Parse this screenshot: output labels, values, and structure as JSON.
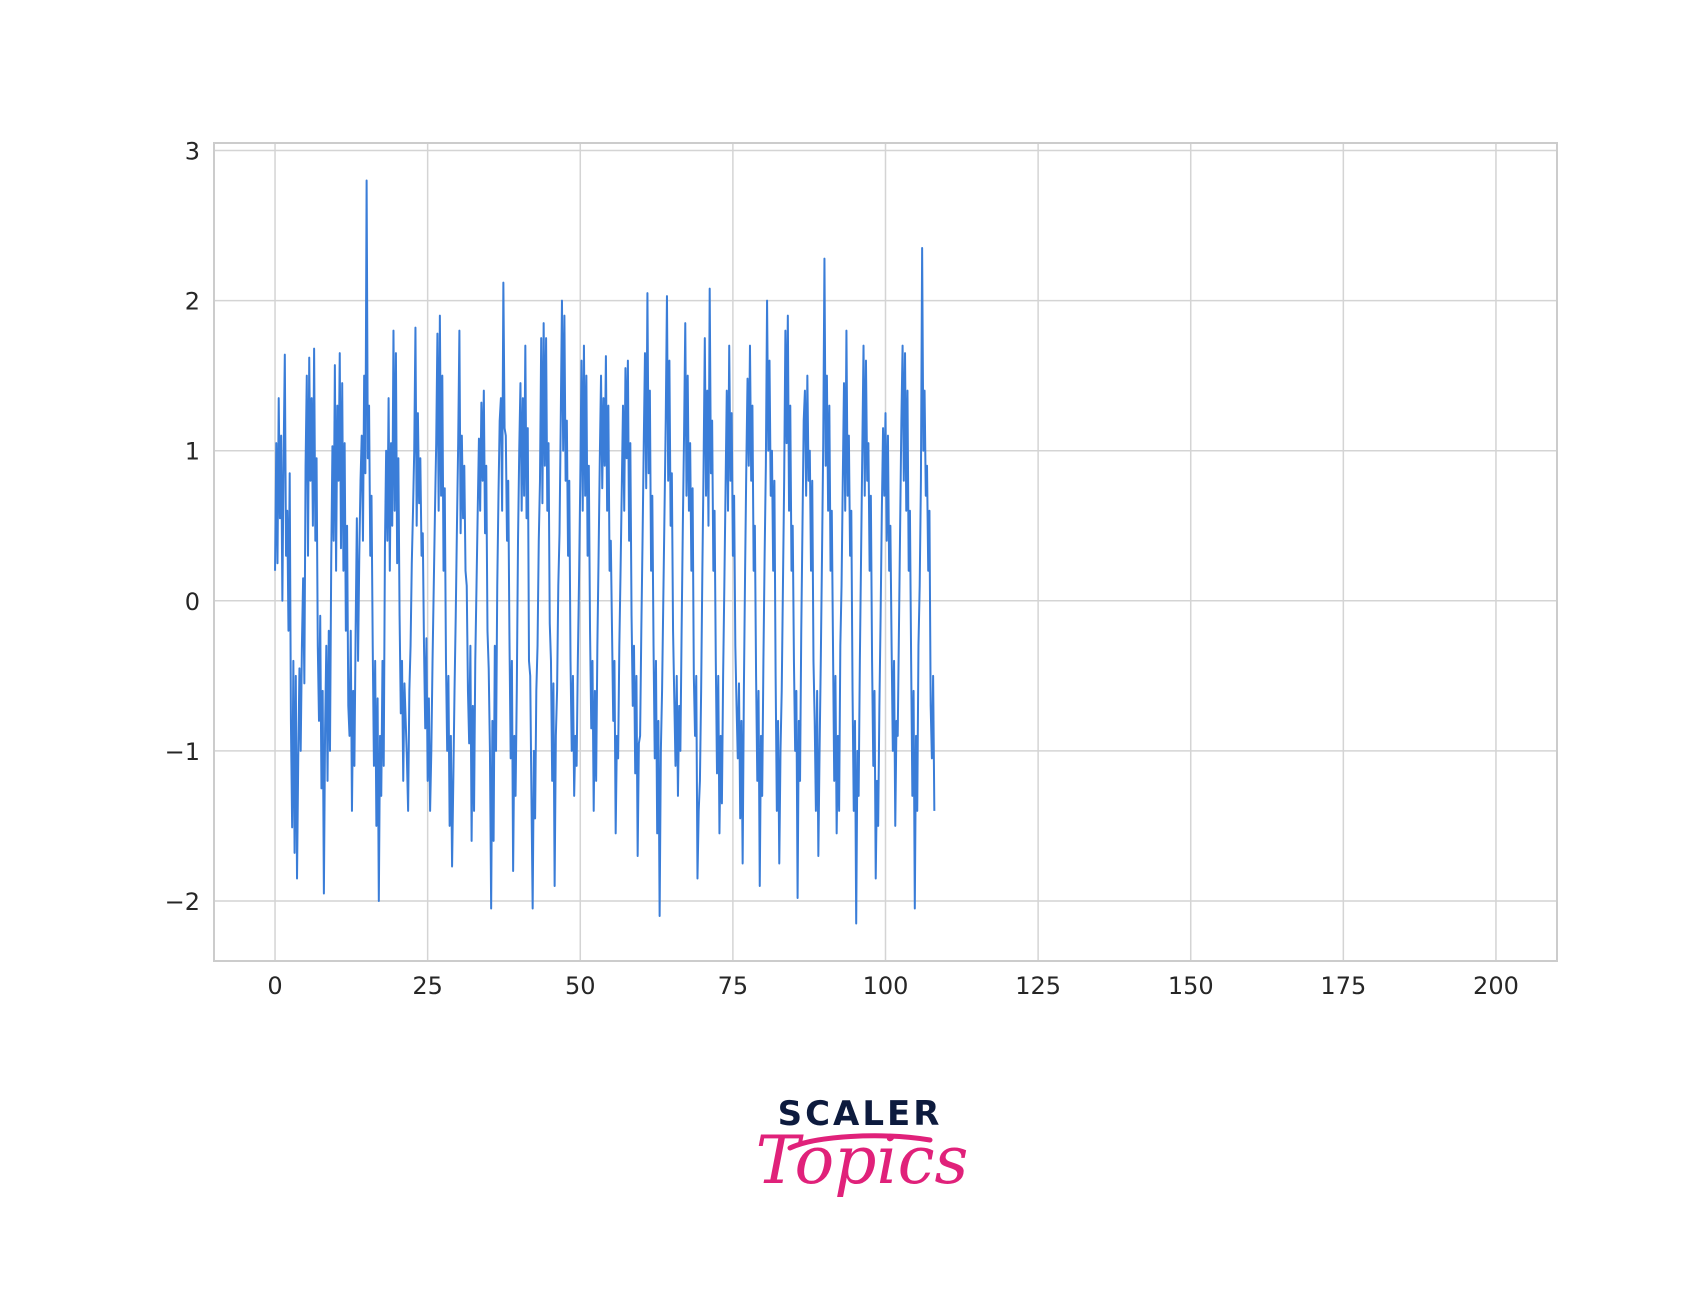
{
  "chart_data": {
    "type": "line",
    "title": "",
    "xlabel": "",
    "ylabel": "",
    "xlim": [
      -10,
      210
    ],
    "ylim": [
      -2.4,
      3.05
    ],
    "grid": true,
    "legend": false,
    "series": [
      {
        "color": "#3a7dd8",
        "x_start": 0,
        "x_step": 0.2,
        "y": [
          0.2,
          1.05,
          0.25,
          1.35,
          0.55,
          1.1,
          0.0,
          0.95,
          1.64,
          0.3,
          0.6,
          -0.2,
          0.85,
          -0.8,
          -1.51,
          -0.4,
          -1.68,
          -0.5,
          -1.85,
          -1.05,
          -0.45,
          -1.0,
          -0.3,
          0.15,
          -0.55,
          0.9,
          1.5,
          0.3,
          1.62,
          0.8,
          1.35,
          0.5,
          1.68,
          0.4,
          0.95,
          -0.3,
          -0.8,
          -0.1,
          -1.25,
          -0.6,
          -1.95,
          -0.85,
          -0.3,
          -1.2,
          -0.2,
          -1.0,
          0.25,
          1.03,
          0.4,
          1.57,
          0.2,
          1.3,
          0.8,
          1.65,
          0.35,
          1.45,
          0.2,
          1.05,
          -0.2,
          0.5,
          -0.7,
          -0.9,
          -0.2,
          -1.4,
          -0.6,
          -1.1,
          -0.2,
          0.55,
          -0.4,
          0.3,
          0.8,
          1.1,
          0.4,
          1.5,
          0.85,
          2.8,
          0.95,
          1.3,
          0.3,
          0.7,
          -0.3,
          -1.1,
          -0.4,
          -1.5,
          -0.65,
          -2.0,
          -0.9,
          -1.3,
          -0.4,
          -1.1,
          0.35,
          1.0,
          0.4,
          1.35,
          0.2,
          1.05,
          0.5,
          1.8,
          0.6,
          1.65,
          0.25,
          0.95,
          -0.1,
          -0.75,
          -0.4,
          -1.2,
          -0.55,
          -0.8,
          -1.05,
          -1.4,
          -0.6,
          -0.3,
          0.25,
          0.6,
          1.0,
          1.82,
          0.5,
          1.25,
          0.65,
          0.95,
          0.3,
          0.45,
          -0.3,
          -0.85,
          -0.25,
          -1.2,
          -0.65,
          -1.4,
          -1.0,
          -0.4,
          0.1,
          0.6,
          1.05,
          1.78,
          0.6,
          1.9,
          0.7,
          1.5,
          0.2,
          0.75,
          -0.4,
          -1.0,
          -0.5,
          -1.5,
          -0.9,
          -1.77,
          -1.2,
          -0.6,
          -0.1,
          0.5,
          1.05,
          1.8,
          0.45,
          1.1,
          0.55,
          0.9,
          0.2,
          0.1,
          -0.6,
          -0.95,
          -0.3,
          -1.6,
          -0.7,
          -1.4,
          -0.4,
          0.1,
          0.6,
          1.08,
          0.6,
          1.32,
          0.8,
          1.4,
          0.45,
          0.9,
          -0.2,
          -0.45,
          -1.0,
          -2.05,
          -0.8,
          -1.6,
          -0.3,
          -1.0,
          0.1,
          0.7,
          1.2,
          1.35,
          0.6,
          2.12,
          1.15,
          1.1,
          0.4,
          0.8,
          -0.25,
          -1.05,
          -0.4,
          -1.8,
          -0.9,
          -1.3,
          -0.6,
          0.4,
          1.0,
          1.45,
          0.6,
          1.35,
          0.7,
          1.7,
          0.55,
          1.15,
          -0.4,
          -0.5,
          -1.3,
          -2.05,
          -1.0,
          -1.45,
          -0.6,
          -0.3,
          0.4,
          0.8,
          1.75,
          0.65,
          1.85,
          0.9,
          1.75,
          0.6,
          1.05,
          -0.15,
          -0.4,
          -1.2,
          -0.55,
          -1.9,
          -0.9,
          -0.6,
          0.1,
          0.45,
          1.2,
          2.0,
          1.0,
          1.9,
          0.8,
          1.2,
          0.3,
          0.8,
          -0.4,
          -1.0,
          -0.5,
          -1.3,
          -0.9,
          -1.1,
          -0.4,
          0.15,
          0.8,
          1.6,
          0.6,
          1.7,
          0.7,
          1.5,
          0.3,
          0.9,
          -0.2,
          -0.85,
          -0.4,
          -1.4,
          -0.6,
          -1.2,
          -0.3,
          0.3,
          0.95,
          1.5,
          0.75,
          1.35,
          0.9,
          1.63,
          0.6,
          1.3,
          0.2,
          0.4,
          -0.2,
          -0.8,
          -0.4,
          -1.55,
          -0.9,
          -1.05,
          -0.3,
          0.2,
          0.75,
          1.3,
          0.6,
          1.55,
          0.95,
          1.6,
          0.4,
          1.05,
          -0.1,
          -0.7,
          -0.3,
          -1.15,
          -0.5,
          -1.7,
          -0.95,
          -0.9,
          -0.2,
          0.4,
          1.05,
          1.65,
          0.75,
          2.05,
          0.85,
          1.4,
          0.2,
          0.7,
          -0.3,
          -1.05,
          -0.4,
          -1.55,
          -0.8,
          -2.1,
          -1.0,
          -0.6,
          0.0,
          0.6,
          1.2,
          2.03,
          0.8,
          1.6,
          0.5,
          0.85,
          -0.2,
          -0.65,
          -1.1,
          -0.5,
          -1.3,
          -0.7,
          -1.0,
          -0.2,
          0.5,
          1.1,
          1.85,
          0.7,
          1.5,
          0.6,
          1.05,
          0.2,
          0.75,
          -0.5,
          -0.9,
          -0.5,
          -1.85,
          -1.4,
          -1.2,
          -0.6,
          0.2,
          0.9,
          1.75,
          0.7,
          1.4,
          0.5,
          2.08,
          0.85,
          1.2,
          0.2,
          0.6,
          -0.4,
          -1.15,
          -0.5,
          -1.55,
          -0.9,
          -1.35,
          -0.5,
          0.1,
          0.75,
          1.4,
          0.6,
          1.7,
          0.8,
          1.25,
          0.3,
          0.7,
          -0.3,
          -0.7,
          -1.05,
          -0.55,
          -1.45,
          -0.8,
          -1.75,
          -0.6,
          0.2,
          0.9,
          1.48,
          0.9,
          1.7,
          0.8,
          1.3,
          0.2,
          0.5,
          -0.5,
          -1.2,
          -0.6,
          -1.9,
          -0.9,
          -1.3,
          -0.4,
          0.3,
          0.9,
          2.0,
          1.0,
          1.6,
          0.7,
          1.0,
          0.2,
          0.8,
          -0.5,
          -1.4,
          -0.8,
          -1.75,
          -1.0,
          -0.6,
          0.1,
          0.8,
          1.8,
          1.05,
          1.9,
          0.6,
          1.3,
          0.2,
          0.5,
          -0.4,
          -1.0,
          -0.6,
          -1.98,
          -0.8,
          -1.2,
          -0.2,
          0.5,
          1.2,
          1.4,
          0.7,
          1.5,
          0.8,
          1.0,
          0.2,
          0.8,
          -0.4,
          -0.8,
          -1.4,
          -0.6,
          -1.7,
          -1.0,
          -0.4,
          0.3,
          1.05,
          2.28,
          0.9,
          1.5,
          0.6,
          1.3,
          0.2,
          0.6,
          -0.3,
          -1.2,
          -0.5,
          -1.55,
          -0.9,
          -1.4,
          -0.3,
          0.1,
          0.8,
          1.45,
          0.6,
          1.8,
          0.7,
          1.1,
          0.3,
          0.6,
          -0.6,
          -1.4,
          -0.8,
          -2.15,
          -1.0,
          -1.3,
          -0.4,
          0.3,
          1.0,
          1.7,
          0.7,
          1.6,
          0.8,
          1.05,
          0.2,
          0.7,
          -0.4,
          -1.1,
          -0.6,
          -1.85,
          -1.2,
          -1.5,
          -0.7,
          -0.1,
          0.6,
          1.15,
          0.7,
          1.25,
          0.4,
          1.1,
          0.2,
          0.5,
          -0.3,
          -1.0,
          -0.4,
          -1.5,
          -0.8,
          -0.9,
          -0.2,
          0.5,
          1.2,
          1.7,
          0.8,
          1.65,
          0.6,
          1.4,
          0.2,
          0.6,
          -0.4,
          -1.3,
          -0.6,
          -2.05,
          -0.9,
          -1.4,
          -0.3,
          0.1,
          0.8,
          2.35,
          1.0,
          1.4,
          0.7,
          0.9,
          0.2,
          0.6,
          -0.7,
          -1.05,
          -0.5,
          -1.4
        ]
      }
    ],
    "x_ticks": [
      0,
      25,
      50,
      75,
      100,
      125,
      150,
      175,
      200
    ],
    "y_ticks": [
      -2,
      -1,
      0,
      1,
      2,
      3
    ],
    "x_tick_labels": [
      "0",
      "25",
      "50",
      "75",
      "100",
      "125",
      "150",
      "175",
      "200"
    ],
    "y_tick_labels": [
      "−2",
      "−1",
      "0",
      "1",
      "2",
      "3"
    ]
  },
  "logo": {
    "word": "SCALER",
    "script": "Topics",
    "word_color": "#0d1b3e",
    "script_color": "#e0217a"
  },
  "colors": {
    "grid": "#d4d4d4",
    "frame": "#cccccc",
    "line": "#3a7dd8"
  }
}
